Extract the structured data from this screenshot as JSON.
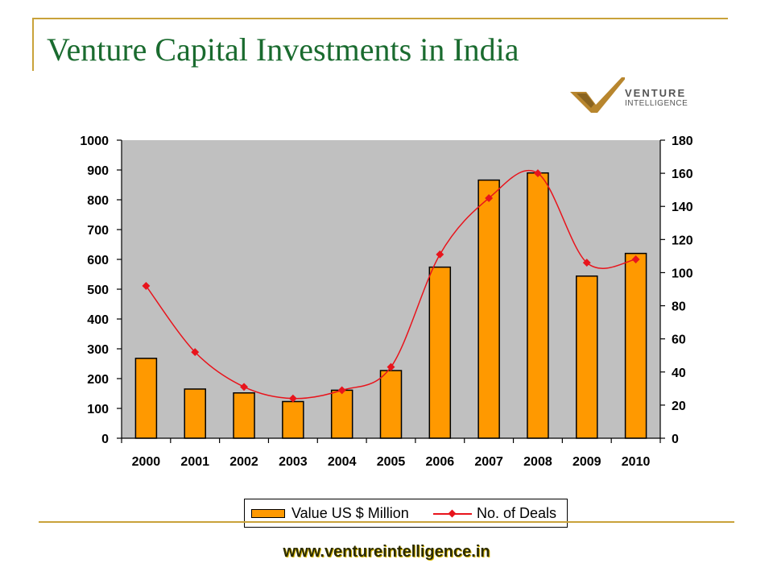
{
  "slide": {
    "title": "Venture Capital Investments in India",
    "website": "www.ventureintelligence.in",
    "logo": {
      "line1": "VENTURE",
      "line2": "INTELLIGENCE",
      "color": "#b8862e"
    }
  },
  "chart_data": {
    "type": "bar+line",
    "categories": [
      "2000",
      "2001",
      "2002",
      "2003",
      "2004",
      "2005",
      "2006",
      "2007",
      "2008",
      "2009",
      "2010"
    ],
    "series": [
      {
        "name": "Value US $ Million",
        "type": "bar",
        "axis": "left",
        "values": [
          268,
          165,
          152,
          123,
          161,
          227,
          574,
          866,
          890,
          544,
          620
        ],
        "color": "#ff9900"
      },
      {
        "name": "No. of Deals",
        "type": "line",
        "axis": "right",
        "values": [
          92,
          52,
          31,
          24,
          29,
          43,
          111,
          145,
          160,
          106,
          108
        ],
        "color": "#e8141c"
      }
    ],
    "y_left": {
      "min": 0,
      "max": 1000,
      "ticks": [
        0,
        100,
        200,
        300,
        400,
        500,
        600,
        700,
        800,
        900,
        1000
      ]
    },
    "y_right": {
      "min": 0,
      "max": 180,
      "ticks": [
        0,
        20,
        40,
        60,
        80,
        100,
        120,
        140,
        160,
        180
      ]
    },
    "plot_background": "#c0c0c0",
    "grid": false,
    "legend": "bottom"
  }
}
